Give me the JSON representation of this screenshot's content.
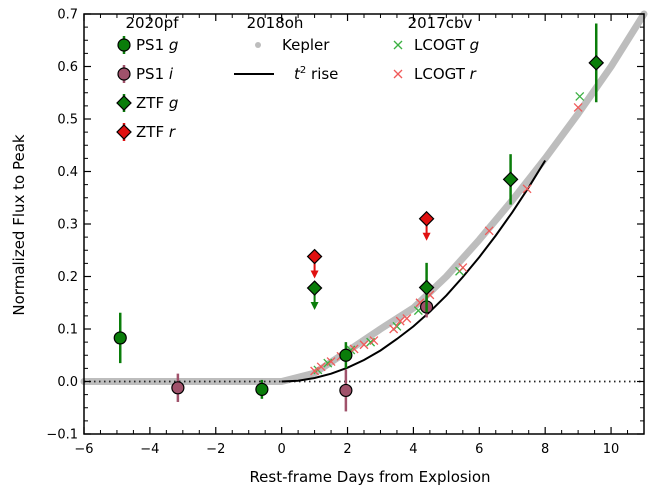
{
  "chart_data": {
    "type": "scatter",
    "xlabel": "Rest-frame Days from Explosion",
    "ylabel": "Normalized Flux to Peak",
    "xlim": [
      -6,
      11
    ],
    "ylim": [
      -0.1,
      0.7
    ],
    "xticks": [
      -6,
      -4,
      -2,
      0,
      2,
      4,
      6,
      8,
      10
    ],
    "yticks": [
      -0.1,
      0.0,
      0.1,
      0.2,
      0.3,
      0.4,
      0.5,
      0.6,
      0.7
    ],
    "xtick_labels": [
      "−6",
      "−4",
      "−2",
      "0",
      "2",
      "4",
      "6",
      "8",
      "10"
    ],
    "ytick_labels": [
      "−0.1",
      "0.0",
      "0.1",
      "0.2",
      "0.3",
      "0.4",
      "0.5",
      "0.6",
      "0.7"
    ],
    "zero_line": "dotted",
    "legend_placement": "top-left",
    "legend_groups": [
      {
        "title": "2020pf",
        "entries": [
          {
            "series": "ps1g",
            "label_main": "PS1 ",
            "label_italic": "g"
          },
          {
            "series": "ps1i",
            "label_main": "PS1 ",
            "label_italic": "i"
          },
          {
            "series": "ztfg",
            "label_main": "ZTF ",
            "label_italic": "g"
          },
          {
            "series": "ztfr",
            "label_main": "ZTF ",
            "label_italic": "r"
          }
        ]
      },
      {
        "title": "2018oh",
        "entries": [
          {
            "series": "kepler",
            "label_main": "Kepler",
            "label_italic": ""
          },
          {
            "series": "t2rise",
            "label_italic": "t",
            "label_sup": "2",
            "label_main": " rise"
          }
        ]
      },
      {
        "title": "2017cbv",
        "entries": [
          {
            "series": "lcogtg",
            "label_main": "LCOGT ",
            "label_italic": "g"
          },
          {
            "series": "lcogtr",
            "label_main": "LCOGT ",
            "label_italic": "r"
          }
        ]
      }
    ],
    "series": [
      {
        "id": "ps1g",
        "marker": "circle",
        "color": "#0a7d0a",
        "points": [
          {
            "x": -4.9,
            "y": 0.083,
            "err": 0.048
          },
          {
            "x": -0.6,
            "y": -0.015,
            "err": 0.018
          },
          {
            "x": 1.95,
            "y": 0.05,
            "err": 0.025
          }
        ]
      },
      {
        "id": "ps1i",
        "marker": "circle",
        "color": "#a0526b",
        "points": [
          {
            "x": -3.15,
            "y": -0.012,
            "err": 0.027
          },
          {
            "x": 1.95,
            "y": -0.017,
            "err": 0.04
          },
          {
            "x": 4.4,
            "y": 0.142,
            "err": 0.02
          }
        ]
      },
      {
        "id": "ztfg",
        "marker": "diamond",
        "color": "#0a7d0a",
        "points": [
          {
            "x": 1.0,
            "y": 0.178,
            "upper_limit": true
          },
          {
            "x": 4.4,
            "y": 0.179,
            "err": 0.047
          },
          {
            "x": 6.95,
            "y": 0.385,
            "err": 0.048
          },
          {
            "x": 9.55,
            "y": 0.607,
            "err": 0.075
          }
        ]
      },
      {
        "id": "ztfr",
        "marker": "diamond",
        "color": "#e01010",
        "points": [
          {
            "x": 1.0,
            "y": 0.238,
            "upper_limit": true
          },
          {
            "x": 4.4,
            "y": 0.31,
            "upper_limit": true
          }
        ]
      },
      {
        "id": "lcogtg",
        "marker": "x",
        "color": "#3cb043",
        "points": [
          {
            "x": 1.1,
            "y": 0.022
          },
          {
            "x": 1.4,
            "y": 0.035
          },
          {
            "x": 2.1,
            "y": 0.06
          },
          {
            "x": 2.7,
            "y": 0.075
          },
          {
            "x": 3.5,
            "y": 0.105
          },
          {
            "x": 4.15,
            "y": 0.135
          },
          {
            "x": 5.4,
            "y": 0.21
          },
          {
            "x": 9.05,
            "y": 0.543
          }
        ]
      },
      {
        "id": "lcogtr",
        "marker": "x",
        "color": "#f05a5a",
        "points": [
          {
            "x": 1.0,
            "y": 0.02
          },
          {
            "x": 1.2,
            "y": 0.028
          },
          {
            "x": 1.5,
            "y": 0.038
          },
          {
            "x": 1.8,
            "y": 0.048
          },
          {
            "x": 2.2,
            "y": 0.062
          },
          {
            "x": 2.5,
            "y": 0.07
          },
          {
            "x": 2.8,
            "y": 0.078
          },
          {
            "x": 3.4,
            "y": 0.1
          },
          {
            "x": 3.6,
            "y": 0.115
          },
          {
            "x": 3.8,
            "y": 0.12
          },
          {
            "x": 4.2,
            "y": 0.15
          },
          {
            "x": 4.5,
            "y": 0.165
          },
          {
            "x": 5.5,
            "y": 0.217
          },
          {
            "x": 6.3,
            "y": 0.287
          },
          {
            "x": 7.45,
            "y": 0.367
          },
          {
            "x": 9.0,
            "y": 0.522
          }
        ]
      },
      {
        "id": "kepler",
        "marker": "band",
        "color": "#bdbdbd",
        "points": [
          {
            "x": -6,
            "y": 0.0
          },
          {
            "x": 0,
            "y": 0.0
          },
          {
            "x": 1,
            "y": 0.016
          },
          {
            "x": 2,
            "y": 0.058
          },
          {
            "x": 3,
            "y": 0.1
          },
          {
            "x": 4,
            "y": 0.14
          },
          {
            "x": 5,
            "y": 0.2
          },
          {
            "x": 6,
            "y": 0.27
          },
          {
            "x": 7,
            "y": 0.345
          },
          {
            "x": 8,
            "y": 0.425
          },
          {
            "x": 9,
            "y": 0.51
          },
          {
            "x": 10,
            "y": 0.6
          },
          {
            "x": 11,
            "y": 0.7
          }
        ]
      },
      {
        "id": "t2rise",
        "marker": "line",
        "color": "#000000",
        "points": [
          {
            "x": 0,
            "y": 0.0
          },
          {
            "x": 0.5,
            "y": 0.0016
          },
          {
            "x": 1,
            "y": 0.0066
          },
          {
            "x": 1.5,
            "y": 0.0148
          },
          {
            "x": 2,
            "y": 0.0263
          },
          {
            "x": 2.5,
            "y": 0.041
          },
          {
            "x": 3,
            "y": 0.059
          },
          {
            "x": 3.5,
            "y": 0.081
          },
          {
            "x": 4,
            "y": 0.105
          },
          {
            "x": 4.5,
            "y": 0.133
          },
          {
            "x": 5,
            "y": 0.164
          },
          {
            "x": 5.5,
            "y": 0.199
          },
          {
            "x": 6,
            "y": 0.237
          },
          {
            "x": 6.5,
            "y": 0.278
          },
          {
            "x": 7,
            "y": 0.322
          },
          {
            "x": 7.5,
            "y": 0.37
          },
          {
            "x": 8,
            "y": 0.421
          }
        ]
      }
    ]
  }
}
